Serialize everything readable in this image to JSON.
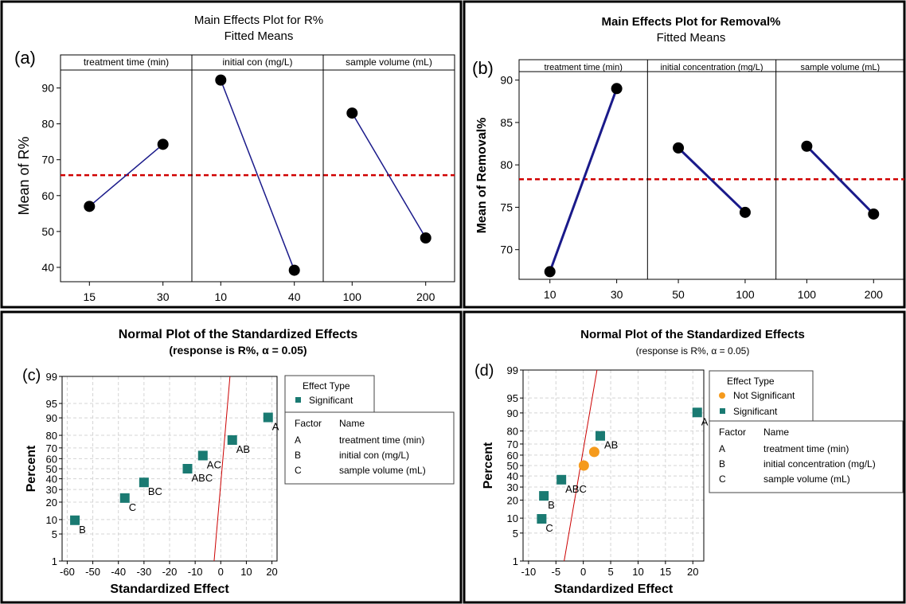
{
  "colors": {
    "line": "#1a1a8a",
    "marker": "#000000",
    "ref_line": "#d00000",
    "significant": "#1a7a72",
    "not_significant": "#f59a1c",
    "grid": "#d4d4d4",
    "normal_line": "#cc0000"
  },
  "chart_data": [
    {
      "panel": "a",
      "type": "line",
      "panel_label": "(a)",
      "title": "Main Effects Plot for R%",
      "subtitle": "Fitted Means",
      "ylabel": "Mean of R%",
      "ylim": [
        36,
        95
      ],
      "yticks": [
        40,
        50,
        60,
        70,
        80,
        90
      ],
      "mean_line": 65.7,
      "factors": [
        {
          "name": "treatment time (min)",
          "levels": [
            "15",
            "30"
          ],
          "values": [
            57,
            74.3
          ]
        },
        {
          "name": "initial con (mg/L)",
          "levels": [
            "10",
            "40"
          ],
          "values": [
            92.2,
            39.2
          ]
        },
        {
          "name": "sample volume (mL)",
          "levels": [
            "100",
            "200"
          ],
          "values": [
            83,
            48.2
          ]
        }
      ]
    },
    {
      "panel": "b",
      "type": "line",
      "panel_label": "(b)",
      "title": "Main Effects Plot for Removal%",
      "subtitle": "Fitted Means",
      "ylabel": "Mean of Removal%",
      "ylim": [
        66.5,
        91
      ],
      "yticks": [
        70,
        75,
        80,
        85,
        90
      ],
      "mean_line": 78.3,
      "factors": [
        {
          "name": "treatment time (min)",
          "levels": [
            "10",
            "30"
          ],
          "values": [
            67.4,
            89
          ]
        },
        {
          "name": "initial concentration (mg/L)",
          "levels": [
            "50",
            "100"
          ],
          "values": [
            82,
            74.4
          ]
        },
        {
          "name": "sample volume (mL)",
          "levels": [
            "100",
            "200"
          ],
          "values": [
            82.2,
            74.2
          ]
        }
      ]
    },
    {
      "panel": "c",
      "type": "scatter",
      "panel_label": "(c)",
      "title": "Normal Plot of the Standardized Effects",
      "subtitle": "(response is R%, α = 0.05)",
      "xlabel": "Standardized Effect",
      "ylabel": "Percent",
      "xlim": [
        -62,
        22
      ],
      "xticks": [
        -60,
        -50,
        -40,
        -30,
        -20,
        -10,
        0,
        10,
        20
      ],
      "yticks": [
        1,
        5,
        10,
        20,
        30,
        40,
        50,
        60,
        70,
        80,
        90,
        95,
        99
      ],
      "normal_line": {
        "x_at_1": -2.6,
        "x_at_99": 3.6
      },
      "legend_title": "Effect Type",
      "legend_entries": [
        "Significant"
      ],
      "factor_table": {
        "headers": [
          "Factor",
          "Name"
        ],
        "rows": [
          [
            "A",
            "treatment time (min)"
          ],
          [
            "B",
            "initial con (mg/L)"
          ],
          [
            "C",
            "sample volume (mL)"
          ]
        ]
      },
      "points": [
        {
          "label": "B",
          "x": -57,
          "y": 9.7,
          "type": "Significant"
        },
        {
          "label": "C",
          "x": -37.5,
          "y": 23,
          "type": "Significant"
        },
        {
          "label": "BC",
          "x": -30,
          "y": 36.5,
          "type": "Significant"
        },
        {
          "label": "ABC",
          "x": -13,
          "y": 50,
          "type": "Significant"
        },
        {
          "label": "AC",
          "x": -7,
          "y": 63,
          "type": "Significant"
        },
        {
          "label": "AB",
          "x": 4.5,
          "y": 76.5,
          "type": "Significant"
        },
        {
          "label": "A",
          "x": 18.5,
          "y": 90.2,
          "type": "Significant"
        }
      ]
    },
    {
      "panel": "d",
      "type": "scatter",
      "panel_label": "(d)",
      "title": "Normal Plot of the Standardized Effects",
      "subtitle": "(response is R%, α = 0.05)",
      "xlabel": "Standardized Effect",
      "ylabel": "Percent",
      "xlim": [
        -11,
        22
      ],
      "xticks": [
        -10,
        -5,
        0,
        5,
        10,
        15,
        20
      ],
      "yticks": [
        1,
        5,
        10,
        20,
        30,
        40,
        50,
        60,
        70,
        80,
        90,
        95,
        99
      ],
      "normal_line": {
        "x_at_1": -3.5,
        "x_at_99": 2.5
      },
      "legend_title": "Effect Type",
      "legend_entries": [
        "Not Significant",
        "Significant"
      ],
      "factor_table": {
        "headers": [
          "Factor",
          "Name"
        ],
        "rows": [
          [
            "A",
            "treatment time (min)"
          ],
          [
            "B",
            "initial concentration (mg/L)"
          ],
          [
            "C",
            "sample volume (mL)"
          ]
        ]
      },
      "points": [
        {
          "label": "C",
          "x": -7.6,
          "y": 9.7,
          "type": "Significant"
        },
        {
          "label": "B",
          "x": -7.2,
          "y": 23,
          "type": "Significant"
        },
        {
          "label": "ABC",
          "x": -4,
          "y": 36.5,
          "type": "Significant"
        },
        {
          "label": "",
          "x": 0.1,
          "y": 50,
          "type": "Not Significant"
        },
        {
          "label": "",
          "x": 2,
          "y": 63,
          "type": "Not Significant"
        },
        {
          "label": "AB",
          "x": 3.1,
          "y": 76.5,
          "type": "Significant"
        },
        {
          "label": "A",
          "x": 20.8,
          "y": 90.2,
          "type": "Significant"
        }
      ]
    }
  ]
}
